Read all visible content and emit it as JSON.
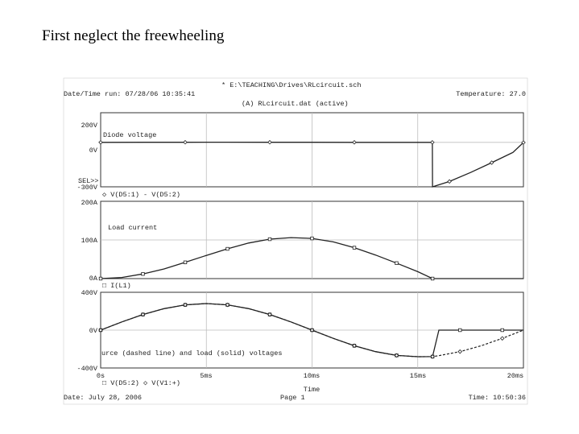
{
  "slide_title": "First neglect the freewheeling",
  "header": {
    "file": "* E:\\TEACHING\\Drives\\RLcircuit.sch",
    "datetime_run": "Date/Time run: 07/28/06 10:35:41",
    "temperature": "Temperature: 27.0",
    "dataset": "(A) RLcircuit.dat (active)"
  },
  "footer": {
    "date": "Date: July 28, 2006",
    "page": "Page 1",
    "time": "Time: 10:50:36"
  },
  "chart_data": [
    {
      "type": "line",
      "title": "Diode voltage",
      "ylim": [
        -300,
        200
      ],
      "y_ticks": [
        "200V",
        "0V",
        "-300V"
      ],
      "sel_label": "SEL>>",
      "legend": "◇ V(D5:1) - V(D5:2)",
      "x": [
        0,
        2,
        4,
        6,
        8,
        10,
        12,
        14,
        15.69,
        15.7,
        16.5,
        17.5,
        18.5,
        19.5,
        20
      ],
      "series": [
        {
          "name": "V(D5:1) - V(D5:2)",
          "values": [
            0,
            0.3,
            0.7,
            1,
            0.7,
            0.4,
            0.2,
            0,
            0,
            -300,
            -264,
            -203,
            -137,
            -68,
            -1
          ]
        }
      ]
    },
    {
      "type": "line",
      "title": "Load current",
      "ylim": [
        0,
        200
      ],
      "y_ticks": [
        "200A",
        "100A",
        "0A"
      ],
      "legend": "□ I(L1)",
      "x": [
        0,
        1,
        2,
        3,
        4,
        5,
        6,
        7,
        8,
        9,
        10,
        11,
        12,
        13,
        14,
        15,
        15.7,
        20
      ],
      "series": [
        {
          "name": "I(L1)",
          "values": [
            0,
            3,
            12,
            25,
            42,
            60,
            77,
            92,
            102,
            106,
            104,
            95,
            80,
            61,
            40,
            18,
            0,
            0
          ]
        }
      ]
    },
    {
      "type": "line",
      "title": "urce (dashed line) and load (solid) voltages",
      "ylim": [
        -400,
        400
      ],
      "y_ticks": [
        "400V",
        "0V",
        "-400V"
      ],
      "legend": "□ V(D5:2)  ◇ V(V1:+)",
      "x_ticks": [
        "0s",
        "5ms",
        "10ms",
        "15ms",
        "20ms"
      ],
      "xlabel": "Time",
      "xlim": [
        0,
        20
      ],
      "x": [
        0,
        1,
        2,
        3,
        4,
        5,
        6,
        7,
        8,
        9,
        10,
        11,
        12,
        13,
        14,
        15,
        15.7,
        16,
        17,
        18,
        19,
        20
      ],
      "series": [
        {
          "name": "V(D5:2)",
          "style": "solid",
          "values": [
            0,
            87,
            165,
            227,
            267,
            281,
            267,
            227,
            165,
            87,
            0,
            -87,
            -165,
            -227,
            -267,
            -281,
            -280,
            0,
            0,
            0,
            0,
            0
          ]
        },
        {
          "name": "V(V1:+)",
          "style": "dashed",
          "values": [
            0,
            87,
            165,
            227,
            267,
            281,
            267,
            227,
            165,
            87,
            0,
            -87,
            -165,
            -227,
            -267,
            -281,
            -280,
            -270,
            -227,
            -165,
            -87,
            0
          ]
        }
      ]
    }
  ]
}
